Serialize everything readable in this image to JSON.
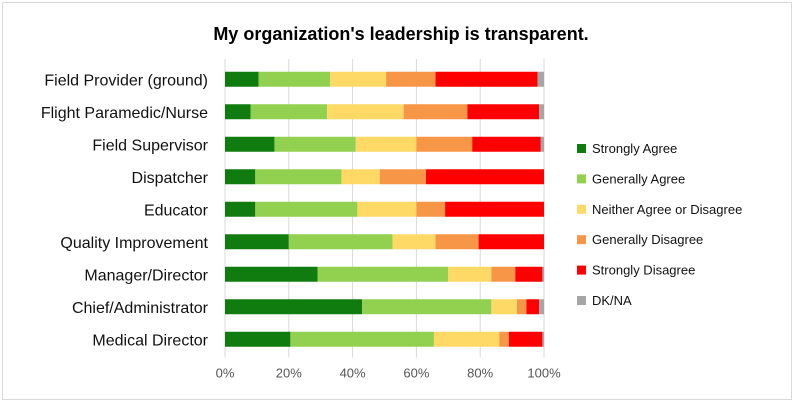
{
  "chart_data": {
    "type": "bar",
    "orientation": "horizontal",
    "stacked": "percent",
    "title": "My organization's leadership is transparent.",
    "categories": [
      "Field Provider (ground)",
      "Flight Paramedic/Nurse",
      "Field Supervisor",
      "Dispatcher",
      "Educator",
      "Quality Improvement",
      "Manager/Director",
      "Chief/Administrator",
      "Medical Director"
    ],
    "series": [
      {
        "name": "Strongly Agree",
        "color": "#107c10",
        "values": [
          10.5,
          8,
          15.5,
          9.5,
          9.5,
          20,
          29,
          43,
          20.5
        ]
      },
      {
        "name": "Generally Agree",
        "color": "#92d050",
        "values": [
          22.5,
          24,
          25.5,
          27,
          32,
          32.5,
          41,
          40.5,
          45
        ]
      },
      {
        "name": "Neither Agree or Disagree",
        "color": "#ffd966",
        "values": [
          17.5,
          24,
          19,
          12,
          18.5,
          13.5,
          13.5,
          8,
          20.5
        ]
      },
      {
        "name": "Generally Disagree",
        "color": "#f79646",
        "values": [
          15.5,
          20,
          17.5,
          14.5,
          9,
          13.5,
          7.5,
          3,
          3
        ]
      },
      {
        "name": "Strongly Disagree",
        "color": "#ff0000",
        "values": [
          32,
          22.5,
          21.5,
          37,
          31,
          20.5,
          8.5,
          4,
          10.5
        ]
      },
      {
        "name": "DK/NA",
        "color": "#a6a6a6",
        "values": [
          2,
          1.5,
          1,
          0,
          0,
          0,
          0.5,
          1.5,
          0.5
        ]
      }
    ],
    "xlim": [
      0,
      100
    ],
    "xticks": [
      "0%",
      "20%",
      "40%",
      "60%",
      "80%",
      "100%"
    ],
    "grid": true,
    "legend_position": "right"
  }
}
